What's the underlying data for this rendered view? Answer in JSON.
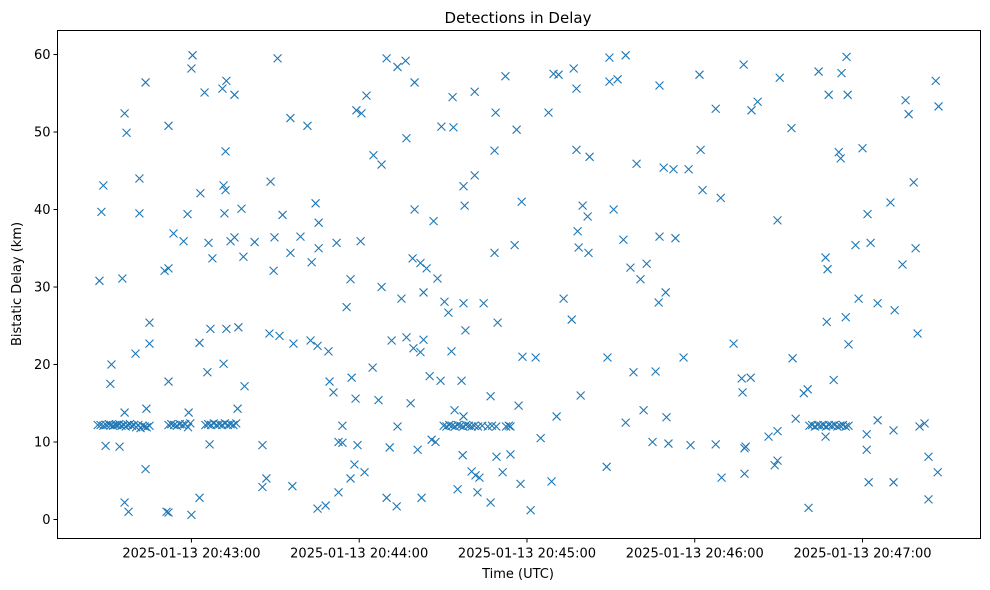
{
  "chart_data": {
    "type": "scatter",
    "title": "Detections in Delay",
    "xlabel": "Time (UTC)",
    "ylabel": "Bistatic Delay (km)",
    "x_unit": "seconds since 2025-01-13 20:42:00",
    "xlim": [
      12.1,
      342.2
    ],
    "ylim": [
      -2.45,
      63.1
    ],
    "grid": false,
    "marker": "x",
    "color": "#1f77b4",
    "xticks": [
      {
        "value": 60,
        "label": "2025-01-13 20:43:00"
      },
      {
        "value": 120,
        "label": "2025-01-13 20:44:00"
      },
      {
        "value": 180,
        "label": "2025-01-13 20:45:00"
      },
      {
        "value": 240,
        "label": "2025-01-13 20:46:00"
      },
      {
        "value": 300,
        "label": "2025-01-13 20:47:00"
      }
    ],
    "yticks": [
      {
        "value": 0,
        "label": "0"
      },
      {
        "value": 10,
        "label": "10"
      },
      {
        "value": 20,
        "label": "20"
      },
      {
        "value": 30,
        "label": "30"
      },
      {
        "value": 40,
        "label": "40"
      },
      {
        "value": 50,
        "label": "50"
      },
      {
        "value": 60,
        "label": "60"
      }
    ],
    "points": [
      [
        27.1,
        30.8
      ],
      [
        27.8,
        39.7
      ],
      [
        28.5,
        43.1
      ],
      [
        29.3,
        9.5
      ],
      [
        31.0,
        17.5
      ],
      [
        31.4,
        20
      ],
      [
        34.3,
        9.4
      ],
      [
        35.3,
        31.1
      ],
      [
        36.1,
        52.4
      ],
      [
        36.8,
        49.9
      ],
      [
        36.1,
        13.8
      ],
      [
        36.1,
        2.2
      ],
      [
        37.5,
        1.0
      ],
      [
        40.0,
        21.4
      ],
      [
        41.4,
        44
      ],
      [
        41.4,
        39.5
      ],
      [
        43.6,
        56.4
      ],
      [
        43.6,
        6.5
      ],
      [
        43.9,
        14.3
      ],
      [
        45.0,
        25.4
      ],
      [
        45.0,
        22.7
      ],
      [
        26.5,
        12.2
      ],
      [
        27.5,
        12.2
      ],
      [
        28.5,
        12.1
      ],
      [
        29.5,
        12.2
      ],
      [
        30.5,
        12.3
      ],
      [
        31.2,
        12.2
      ],
      [
        32,
        12.1
      ],
      [
        32.8,
        12.2
      ],
      [
        33.5,
        12.2
      ],
      [
        34.2,
        12.3
      ],
      [
        35,
        12.1
      ],
      [
        35.8,
        12.2
      ],
      [
        36.5,
        12.0
      ],
      [
        37.2,
        12.2
      ],
      [
        38,
        12.3
      ],
      [
        38.7,
        12.1
      ],
      [
        39.5,
        12.2
      ],
      [
        40.2,
        11.9
      ],
      [
        41,
        12.2
      ],
      [
        41.8,
        11.8
      ],
      [
        42.5,
        12.1
      ],
      [
        43.3,
        12.0
      ],
      [
        44,
        11.9
      ],
      [
        45,
        12.1
      ],
      [
        50.4,
        32.1
      ],
      [
        51.8,
        32.4
      ],
      [
        51.8,
        50.8
      ],
      [
        51.8,
        17.8
      ],
      [
        51.1,
        1.0
      ],
      [
        51.8,
        0.9
      ],
      [
        53.6,
        36.9
      ],
      [
        57.2,
        35.9
      ],
      [
        58.6,
        39.4
      ],
      [
        59.0,
        13.8
      ],
      [
        60,
        58.2
      ],
      [
        60.4,
        59.9
      ],
      [
        60,
        0.6
      ],
      [
        62.9,
        22.8
      ],
      [
        62.9,
        2.8
      ],
      [
        63.2,
        42.1
      ],
      [
        64.7,
        55.1
      ],
      [
        65.7,
        19
      ],
      [
        66.1,
        35.7
      ],
      [
        66.5,
        9.7
      ],
      [
        66.8,
        24.6
      ],
      [
        67.5,
        33.7
      ],
      [
        51.8,
        12.2
      ],
      [
        52.8,
        12.3
      ],
      [
        53.8,
        12.2
      ],
      [
        54.8,
        12.1
      ],
      [
        55.8,
        12.3
      ],
      [
        56.8,
        12.2
      ],
      [
        57.8,
        12.3
      ],
      [
        58.8,
        11.9
      ],
      [
        59.6,
        12.4
      ],
      [
        65,
        12.2
      ],
      [
        66,
        12.3
      ],
      [
        67,
        12.2
      ],
      [
        68,
        12.4
      ],
      [
        69,
        12.2
      ],
      [
        70,
        12.3
      ],
      [
        71,
        12.2
      ],
      [
        72,
        12.4
      ],
      [
        73,
        12.2
      ],
      [
        74,
        12.3
      ],
      [
        75,
        12.2
      ],
      [
        76,
        12.4
      ],
      [
        71.1,
        55.6
      ],
      [
        72.5,
        56.6
      ],
      [
        71.5,
        43.1
      ],
      [
        72.2,
        42.5
      ],
      [
        72.2,
        47.5
      ],
      [
        71.8,
        39.5
      ],
      [
        71.5,
        20.1
      ],
      [
        72.5,
        24.6
      ],
      [
        74.0,
        35.9
      ],
      [
        75.4,
        54.8
      ],
      [
        75.4,
        36.4
      ],
      [
        76.5,
        14.3
      ],
      [
        76.8,
        24.8
      ],
      [
        77.9,
        40.1
      ],
      [
        79.0,
        17.2
      ],
      [
        78.6,
        33.9
      ],
      [
        82.6,
        35.8
      ],
      [
        85.4,
        9.6
      ],
      [
        85.4,
        4.2
      ],
      [
        86.8,
        5.3
      ],
      [
        88.3,
        43.6
      ],
      [
        89.4,
        32.1
      ],
      [
        89.7,
        36.4
      ],
      [
        90.8,
        59.5
      ],
      [
        87.9,
        24
      ],
      [
        91.5,
        23.7
      ],
      [
        92.6,
        39.3
      ],
      [
        95.4,
        51.8
      ],
      [
        95.4,
        34.4
      ],
      [
        96.1,
        4.3
      ],
      [
        96.5,
        22.7
      ],
      [
        99,
        36.5
      ],
      [
        101.5,
        50.8
      ],
      [
        102.6,
        23.1
      ],
      [
        103,
        33.2
      ],
      [
        104.4,
        40.8
      ],
      [
        105.1,
        1.4
      ],
      [
        105.5,
        35
      ],
      [
        105.5,
        38.3
      ],
      [
        105.1,
        22.4
      ],
      [
        108,
        1.8
      ],
      [
        109,
        21.7
      ],
      [
        109.4,
        17.8
      ],
      [
        110.8,
        16.4
      ],
      [
        111.9,
        35.7
      ],
      [
        112.6,
        3.5
      ],
      [
        112.6,
        10
      ],
      [
        114,
        9.9
      ],
      [
        114,
        12.1
      ],
      [
        115.5,
        27.4
      ],
      [
        116.9,
        31
      ],
      [
        117.3,
        18.3
      ],
      [
        116.9,
        5.3
      ],
      [
        118.3,
        7.1
      ],
      [
        118.7,
        15.6
      ],
      [
        119,
        52.8
      ],
      [
        120.8,
        52.4
      ],
      [
        119.4,
        9.6
      ],
      [
        120.5,
        35.9
      ],
      [
        122.6,
        54.7
      ],
      [
        121.9,
        6.1
      ],
      [
        124.8,
        19.6
      ],
      [
        125.1,
        47
      ],
      [
        126.9,
        15.4
      ],
      [
        128,
        45.8
      ],
      [
        128,
        30
      ],
      [
        129.8,
        2.8
      ],
      [
        129.8,
        59.5
      ],
      [
        130.9,
        9.3
      ],
      [
        131.6,
        23.1
      ],
      [
        133.4,
        1.7
      ],
      [
        133.7,
        12
      ],
      [
        133.7,
        58.4
      ],
      [
        135.1,
        28.5
      ],
      [
        136.6,
        59.2
      ],
      [
        136.9,
        49.2
      ],
      [
        136.9,
        23.5
      ],
      [
        138.4,
        15
      ],
      [
        139.1,
        33.7
      ],
      [
        139.4,
        22.1
      ],
      [
        139.8,
        40
      ],
      [
        139.8,
        56.4
      ],
      [
        140.9,
        9
      ],
      [
        141.9,
        33.1
      ],
      [
        141.9,
        21.6
      ],
      [
        142.3,
        2.8
      ],
      [
        143,
        23.2
      ],
      [
        143,
        29.3
      ],
      [
        144.1,
        32.4
      ],
      [
        145.2,
        18.5
      ],
      [
        145.9,
        10.3
      ],
      [
        146.6,
        38.5
      ],
      [
        147.3,
        10
      ],
      [
        148,
        31.1
      ],
      [
        149.1,
        17.9
      ],
      [
        149.4,
        50.7
      ],
      [
        150.5,
        28.1
      ],
      [
        151.9,
        26.7
      ],
      [
        153,
        21.7
      ],
      [
        153.4,
        54.5
      ],
      [
        153.7,
        50.6
      ],
      [
        154.1,
        14.1
      ],
      [
        155.2,
        3.9
      ],
      [
        156.6,
        17.9
      ],
      [
        157,
        8.3
      ],
      [
        157.3,
        43
      ],
      [
        157.3,
        27.9
      ],
      [
        157.3,
        13.3
      ],
      [
        158,
        24.4
      ],
      [
        157.7,
        40.5
      ],
      [
        160.2,
        6.2
      ],
      [
        161.3,
        44.4
      ],
      [
        161.3,
        55.2
      ],
      [
        161.6,
        5.7
      ],
      [
        162.3,
        3.5
      ],
      [
        163,
        5.4
      ],
      [
        164.5,
        27.9
      ],
      [
        167,
        15.9
      ],
      [
        167,
        2.2
      ],
      [
        168.4,
        34.4
      ],
      [
        168.4,
        47.6
      ],
      [
        168.8,
        52.5
      ],
      [
        169.5,
        25.4
      ],
      [
        169.1,
        8.1
      ],
      [
        171.3,
        6.1
      ],
      [
        172.3,
        57.2
      ],
      [
        174.1,
        8.4
      ],
      [
        174.1,
        12
      ],
      [
        175.6,
        35.4
      ],
      [
        176.3,
        50.3
      ],
      [
        177,
        14.7
      ],
      [
        177.7,
        4.6
      ],
      [
        178.4,
        21
      ],
      [
        178.1,
        41
      ],
      [
        181.3,
        1.2
      ],
      [
        183.1,
        20.9
      ],
      [
        184.9,
        10.5
      ],
      [
        187.7,
        52.5
      ],
      [
        188.8,
        4.9
      ],
      [
        189.5,
        57.5
      ],
      [
        191.3,
        57.4
      ],
      [
        190.6,
        13.3
      ],
      [
        193.1,
        28.5
      ],
      [
        196,
        25.8
      ],
      [
        196.7,
        58.2
      ],
      [
        197.7,
        55.6
      ],
      [
        197.7,
        47.7
      ],
      [
        198.1,
        37.2
      ],
      [
        198.5,
        35.1
      ],
      [
        199.2,
        16
      ],
      [
        199.9,
        40.5
      ],
      [
        201.7,
        39.1
      ],
      [
        202.4,
        46.8
      ],
      [
        202,
        34.4
      ],
      [
        150.2,
        12.1
      ],
      [
        151.2,
        12.0
      ],
      [
        152.2,
        12.2
      ],
      [
        153.2,
        12.1
      ],
      [
        154.2,
        12.0
      ],
      [
        155.2,
        12.2
      ],
      [
        156.2,
        12.1
      ],
      [
        157.2,
        12.0
      ],
      [
        158.2,
        12.2
      ],
      [
        159.2,
        12.1
      ],
      [
        160.2,
        12.0
      ],
      [
        161.2,
        12.1
      ],
      [
        162.5,
        12.0
      ],
      [
        164,
        12.1
      ],
      [
        166,
        12.0
      ],
      [
        167.5,
        12.1
      ],
      [
        169,
        12.0
      ],
      [
        172.5,
        12.0
      ],
      [
        173.5,
        12.1
      ],
      [
        208.5,
        6.8
      ],
      [
        208.8,
        20.9
      ],
      [
        209.5,
        59.6
      ],
      [
        209.5,
        56.5
      ],
      [
        211,
        40
      ],
      [
        212.4,
        56.8
      ],
      [
        214.5,
        36.1
      ],
      [
        215.3,
        59.9
      ],
      [
        215.3,
        12.5
      ],
      [
        217,
        32.5
      ],
      [
        218.1,
        19
      ],
      [
        219.2,
        45.9
      ],
      [
        220.6,
        31
      ],
      [
        221.7,
        14.1
      ],
      [
        222.8,
        33
      ],
      [
        224.9,
        10
      ],
      [
        226,
        19.1
      ],
      [
        227.1,
        28
      ],
      [
        227.4,
        56
      ],
      [
        227.4,
        36.5
      ],
      [
        228.9,
        45.4
      ],
      [
        229.6,
        29.3
      ],
      [
        229.9,
        13.2
      ],
      [
        230.6,
        9.8
      ],
      [
        232.4,
        45.2
      ],
      [
        233.1,
        36.3
      ],
      [
        236,
        20.9
      ],
      [
        237.8,
        45.2
      ],
      [
        238.5,
        9.6
      ],
      [
        241.7,
        57.4
      ],
      [
        242.1,
        47.7
      ],
      [
        242.8,
        42.5
      ],
      [
        247.5,
        9.7
      ],
      [
        247.5,
        53
      ],
      [
        249.3,
        41.5
      ],
      [
        249.6,
        5.4
      ],
      [
        253.9,
        22.7
      ],
      [
        256.8,
        18.2
      ],
      [
        257.1,
        16.4
      ],
      [
        257.5,
        58.7
      ],
      [
        257.8,
        5.9
      ],
      [
        258.2,
        9.4
      ],
      [
        257.8,
        9.2
      ],
      [
        260,
        18.3
      ],
      [
        260.3,
        52.8
      ],
      [
        262.5,
        53.9
      ],
      [
        266.4,
        10.7
      ],
      [
        268.6,
        7
      ],
      [
        269.6,
        11.4
      ],
      [
        269.6,
        7.6
      ],
      [
        269.6,
        38.6
      ],
      [
        270.4,
        57
      ],
      [
        274.6,
        50.5
      ],
      [
        275,
        20.8
      ],
      [
        276.1,
        13
      ],
      [
        279,
        16.3
      ],
      [
        280.4,
        16.8
      ],
      [
        280.7,
        1.5
      ],
      [
        284.3,
        57.8
      ],
      [
        286.8,
        33.8
      ],
      [
        287.5,
        32.3
      ],
      [
        287.9,
        54.8
      ],
      [
        287.2,
        25.5
      ],
      [
        286.8,
        10.7
      ],
      [
        289.7,
        18
      ],
      [
        291.5,
        47.4
      ],
      [
        292.2,
        46.6
      ],
      [
        292.5,
        57.6
      ],
      [
        294,
        26.1
      ],
      [
        294.7,
        54.8
      ],
      [
        294.3,
        59.7
      ],
      [
        295,
        22.6
      ],
      [
        297.5,
        35.4
      ],
      [
        298.6,
        28.5
      ],
      [
        300,
        47.9
      ],
      [
        301.8,
        39.4
      ],
      [
        301.5,
        11
      ],
      [
        301.5,
        9
      ],
      [
        302.2,
        4.8
      ],
      [
        302.9,
        35.7
      ],
      [
        305.4,
        27.9
      ],
      [
        305.4,
        12.8
      ],
      [
        310,
        40.9
      ],
      [
        311.1,
        4.8
      ],
      [
        311.5,
        27
      ],
      [
        311.1,
        11.5
      ],
      [
        314.3,
        32.9
      ],
      [
        315.4,
        54.1
      ],
      [
        316.5,
        52.3
      ],
      [
        318.3,
        43.5
      ],
      [
        319,
        35
      ],
      [
        319.7,
        24
      ],
      [
        320.4,
        12
      ],
      [
        322.2,
        12.4
      ],
      [
        323.6,
        8.1
      ],
      [
        323.6,
        2.6
      ],
      [
        326.2,
        56.6
      ],
      [
        327.2,
        53.3
      ],
      [
        326.9,
        6.1
      ],
      [
        281,
        12.1
      ],
      [
        282,
        12.2
      ],
      [
        283,
        12.0
      ],
      [
        284,
        12.2
      ],
      [
        285,
        12.1
      ],
      [
        286,
        12.2
      ],
      [
        287,
        12.0
      ],
      [
        288,
        12.2
      ],
      [
        289,
        12.1
      ],
      [
        290,
        12.2
      ],
      [
        291,
        12.0
      ],
      [
        292,
        12.1
      ],
      [
        293,
        12.2
      ],
      [
        294,
        12.0
      ],
      [
        295,
        12.1
      ]
    ]
  }
}
